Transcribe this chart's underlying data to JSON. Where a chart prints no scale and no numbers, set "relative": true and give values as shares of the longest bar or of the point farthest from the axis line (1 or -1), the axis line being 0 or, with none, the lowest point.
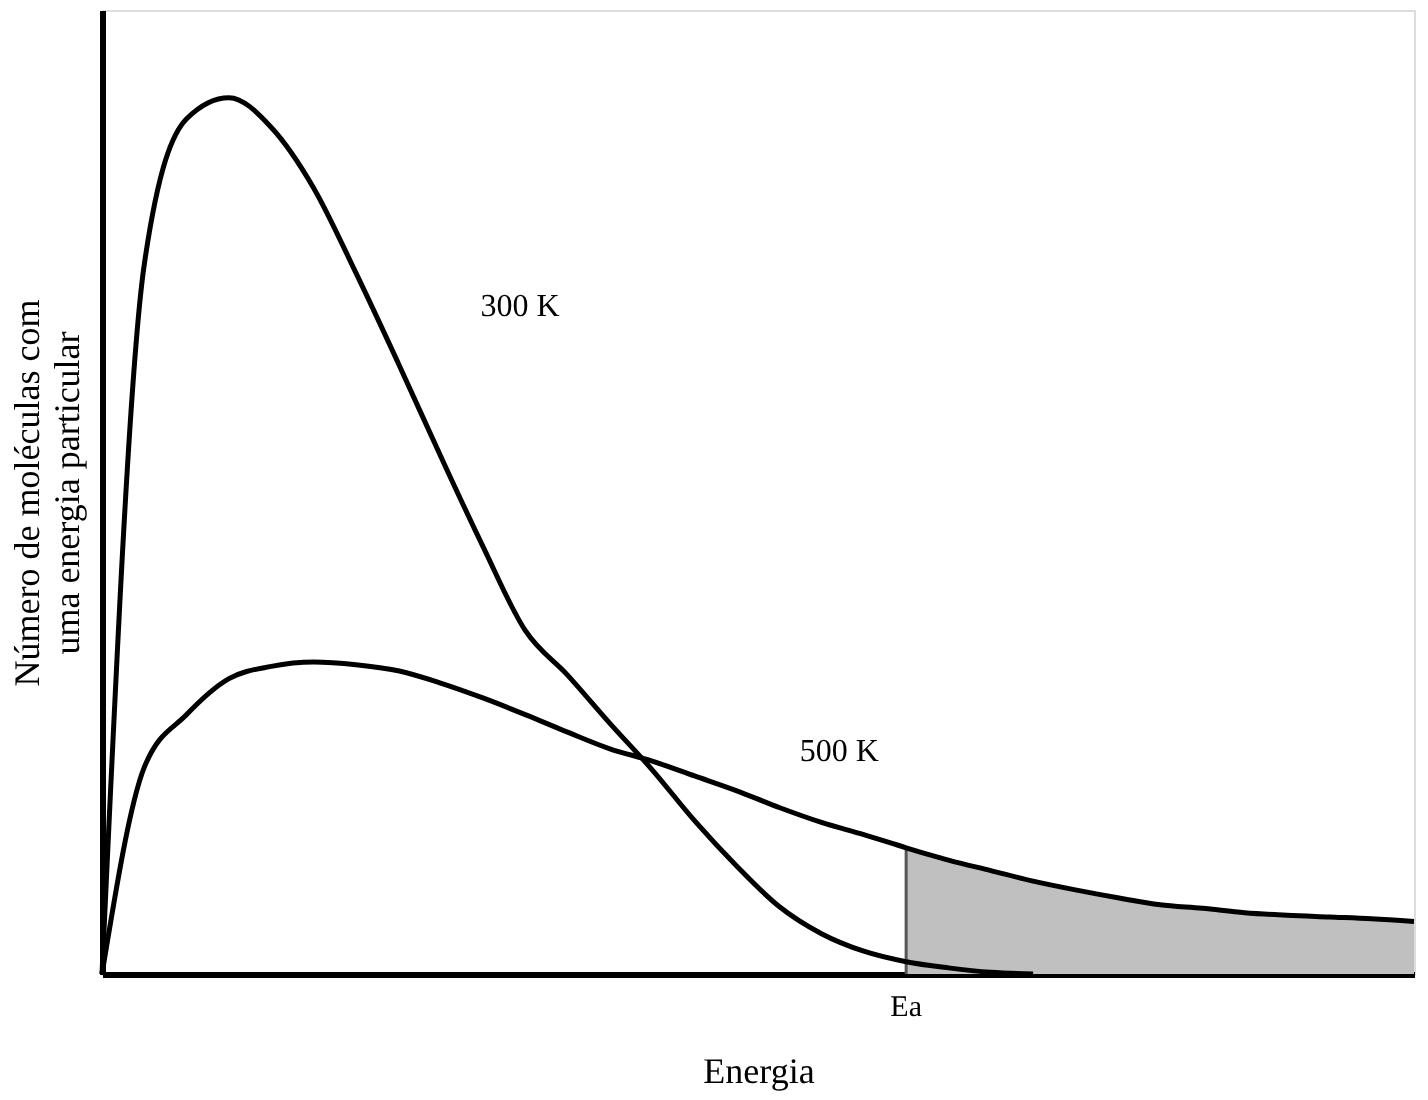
{
  "chart_data": {
    "type": "line",
    "relative": true,
    "xlabel": "Energia",
    "ylabel": "Número de moléculas com\numa energia particular",
    "categories": [
      null,
      null,
      null,
      null,
      null,
      null,
      null,
      null,
      null,
      null,
      null,
      null,
      null,
      null,
      null,
      null,
      null,
      null,
      null,
      null,
      null,
      null,
      null,
      null,
      null,
      null,
      null,
      null,
      null,
      null,
      null,
      null
    ],
    "series": [
      {
        "type": "area",
        "color": "#c0c0c0",
        "values": [
          null,
          null,
          null,
          null,
          null,
          null,
          null,
          null,
          null,
          null,
          null,
          null,
          null,
          null,
          null,
          null,
          null,
          null,
          null,
          0.144,
          0.13,
          0.118,
          0.106,
          0.096,
          0.087,
          0.079,
          0.075,
          0.07,
          0.067,
          0.065,
          0.063,
          0.06
        ]
      },
      {
        "name": "300 K",
        "color": "#000000",
        "values": [
          0,
          0.81,
          0.976,
          1.0,
          0.966,
          0.897,
          0.8,
          0.697,
          0.591,
          0.488,
          0.392,
          0.341,
          0.286,
          0.233,
          0.175,
          0.123,
          0.077,
          0.046,
          0.026,
          0.014,
          0.007,
          0.002,
          0.0,
          null,
          null,
          null,
          null,
          null,
          null,
          null,
          null,
          null
        ]
      },
      {
        "name": "500 K",
        "color": "#000000",
        "values": [
          0,
          0.236,
          0.296,
          0.337,
          0.351,
          0.356,
          0.353,
          0.346,
          0.332,
          0.315,
          0.296,
          0.276,
          0.257,
          0.243,
          0.226,
          0.209,
          0.19,
          0.173,
          0.159,
          0.144,
          0.13,
          0.118,
          0.106,
          0.096,
          0.087,
          0.079,
          0.075,
          0.07,
          0.067,
          0.065,
          0.063,
          0.06
        ]
      }
    ],
    "annotations": [
      "Ea"
    ],
    "grid": false,
    "line_style": "solid"
  }
}
